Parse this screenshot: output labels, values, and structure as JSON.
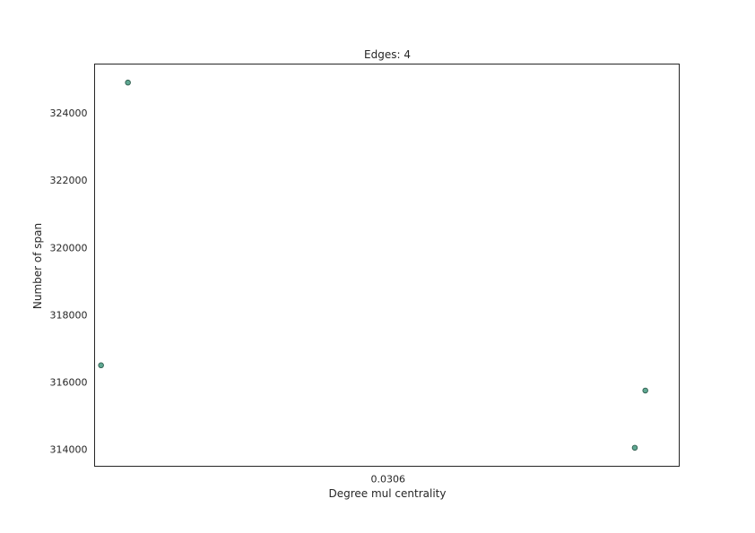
{
  "chart_data": {
    "type": "scatter",
    "title": "Edges: 4",
    "xlabel": "Degree mul centrality",
    "ylabel": "Number of span",
    "x_ticks": [
      "0.0306"
    ],
    "y_ticks": [
      314000,
      316000,
      318000,
      320000,
      322000,
      324000
    ],
    "ylim": [
      313500,
      325450
    ],
    "grid": false,
    "legend": "none",
    "colors": {
      "point_fill": "#5fa892",
      "point_stroke": "#2f5d4e",
      "frame": "#262626",
      "text": "#262626"
    },
    "points": [
      {
        "x_rel": 0.011,
        "y": 316500
      },
      {
        "x_rel": 0.057,
        "y": 324900
      },
      {
        "x_rel": 0.924,
        "y": 314050
      },
      {
        "x_rel": 0.942,
        "y": 315750
      }
    ]
  }
}
